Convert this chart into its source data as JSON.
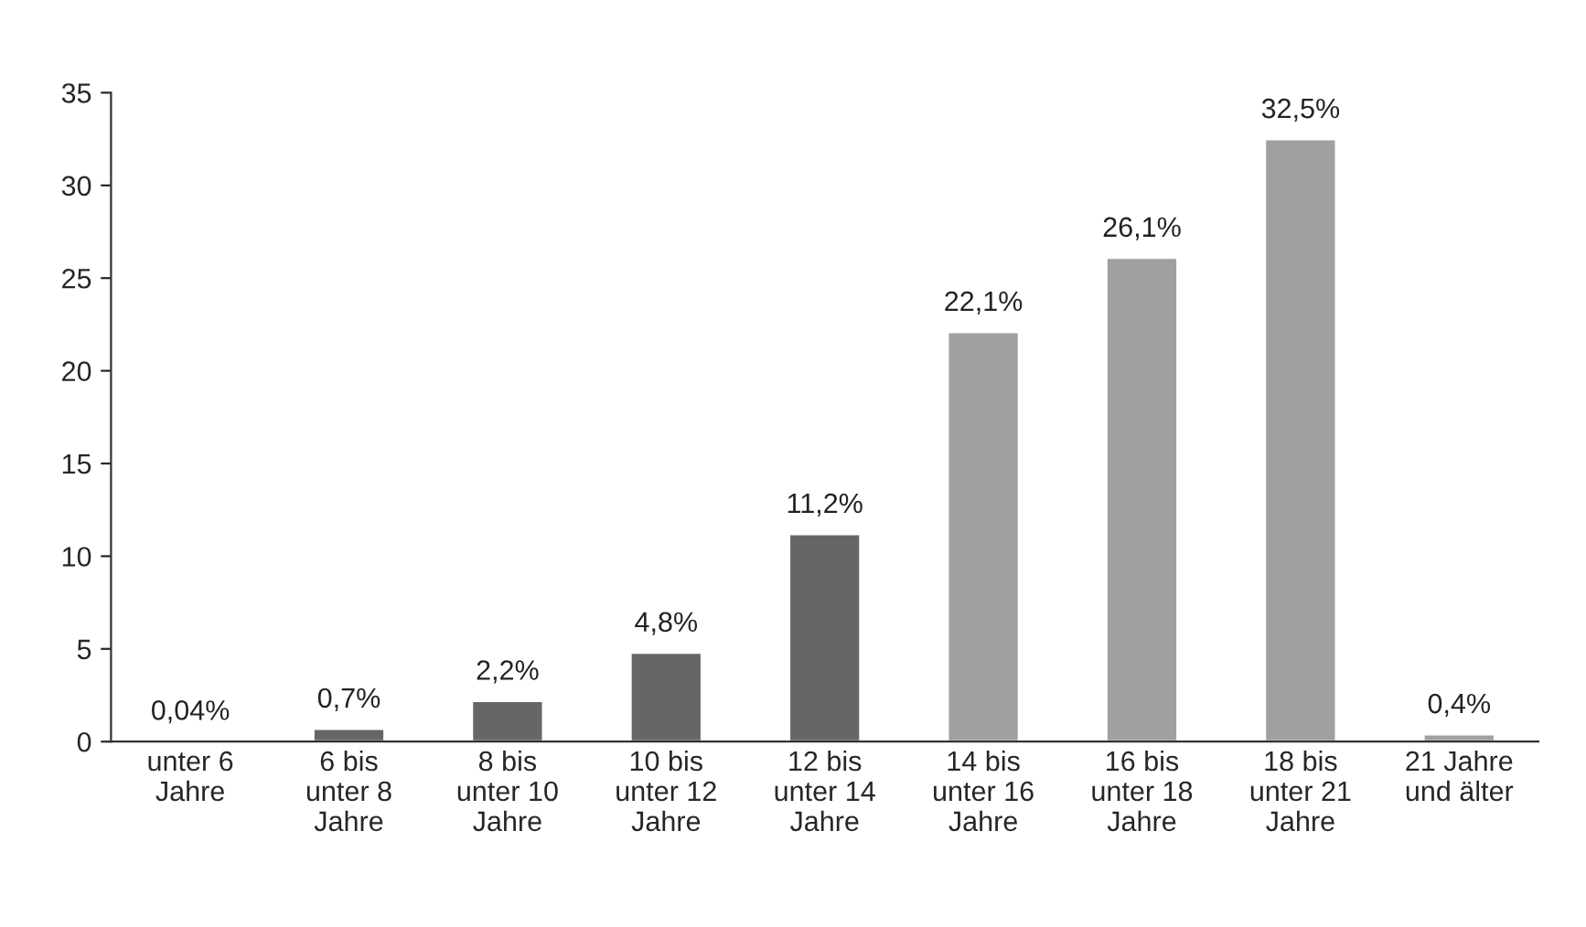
{
  "chart_data": {
    "type": "bar",
    "categories": [
      "unter 6\nJahre",
      "6 bis\nunter 8\nJahre",
      "8 bis\nunter 10\nJahre",
      "10 bis\nunter 12\nJahre",
      "12 bis\nunter 14\nJahre",
      "14 bis\nunter 16\nJahre",
      "16 bis\nunter 18\nJahre",
      "18 bis\nunter 21\nJahre",
      "21 Jahre\nund älter"
    ],
    "values": [
      0.04,
      0.7,
      2.2,
      4.8,
      11.2,
      22.1,
      26.1,
      32.5,
      0.4
    ],
    "value_labels": [
      "0,04%",
      "0,7%",
      "2,2%",
      "4,8%",
      "11,2%",
      "22,1%",
      "26,1%",
      "32,5%",
      "0,4%"
    ],
    "colors": [
      "#666666",
      "#666666",
      "#666666",
      "#666666",
      "#666666",
      "#a0a0a0",
      "#a0a0a0",
      "#a0a0a0",
      "#a0a0a0"
    ],
    "ylim": [
      0,
      35
    ],
    "yticks": [
      0,
      5,
      10,
      15,
      20,
      25,
      30,
      35
    ],
    "grid": false,
    "legend": false
  }
}
